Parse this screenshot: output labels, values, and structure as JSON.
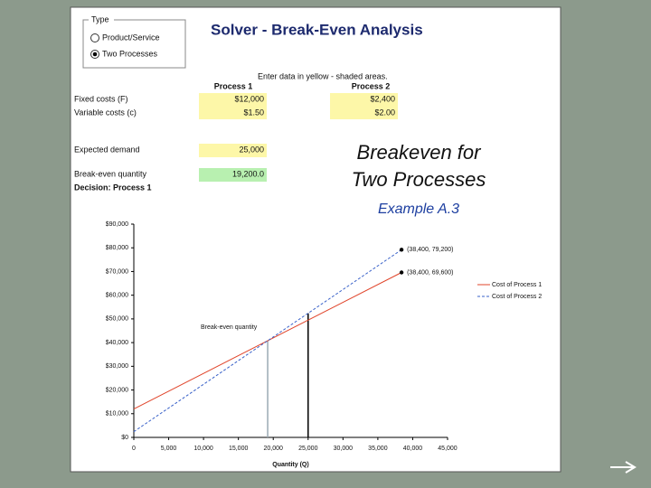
{
  "type_group": {
    "label": "Type",
    "options": [
      "Product/Service",
      "Two Processes"
    ],
    "selected": 1
  },
  "title": "Solver - Break-Even Analysis",
  "instruction": "Enter data in yellow - shaded areas.",
  "columns": [
    "Process 1",
    "Process 2"
  ],
  "rows": [
    {
      "label": "Fixed costs (F)",
      "values": [
        "$12,000",
        "$2,400"
      ]
    },
    {
      "label": "Variable costs (c)",
      "values": [
        "$1.50",
        "$2.00"
      ]
    }
  ],
  "demand": {
    "label": "Expected demand",
    "value": "25,000"
  },
  "breakeven": {
    "label": "Break-even quantity",
    "value": "19,200.0"
  },
  "decision": "Decision: Process 1",
  "slide_title": [
    "Breakeven for",
    "Two Processes"
  ],
  "slide_subtitle": "Example A.3",
  "chart_data": {
    "type": "line",
    "x": [
      0,
      38400
    ],
    "series": [
      {
        "name": "Cost of Process 1",
        "color": "#e0452b",
        "dashed": false,
        "values": [
          12000,
          69600
        ]
      },
      {
        "name": "Cost of Process 2",
        "color": "#3a62c9",
        "dashed": true,
        "values": [
          2400,
          79200
        ]
      }
    ],
    "annotations": [
      {
        "x": 38400,
        "y": 79200,
        "label": "(38,400,  79,200)"
      },
      {
        "x": 38400,
        "y": 69600,
        "label": "(38,400,  69,600)"
      }
    ],
    "vlines": [
      {
        "x": 19200,
        "y": 40800,
        "color": "#9aaab4"
      },
      {
        "x": 25000,
        "y": 52400,
        "color": "#000000"
      }
    ],
    "vline_label": "Break-even quantity",
    "xlabel": "Quantity (Q)",
    "xlim": [
      0,
      45000
    ],
    "xticks": [
      0,
      {
        "value": 5000,
        "label": "5,000"
      },
      {
        "value": 10000,
        "label": "10,000"
      },
      {
        "value": 15000,
        "label": "15,000"
      },
      {
        "value": 20000,
        "label": "20,000"
      },
      {
        "value": 25000,
        "label": "25,000"
      },
      {
        "value": 30000,
        "label": "30,000"
      },
      {
        "value": 35000,
        "label": "35,000"
      },
      {
        "value": 40000,
        "label": "40,000"
      },
      {
        "value": 45000,
        "label": "45,000"
      }
    ],
    "ylim": [
      0,
      90000
    ],
    "yticks": [
      {
        "value": 0,
        "label": "$0"
      },
      {
        "value": 10000,
        "label": "$10,000"
      },
      {
        "value": 20000,
        "label": "$20,000"
      },
      {
        "value": 30000,
        "label": "$30,000"
      },
      {
        "value": 40000,
        "label": "$40,000"
      },
      {
        "value": 50000,
        "label": "$50,000"
      },
      {
        "value": 60000,
        "label": "$60,000"
      },
      {
        "value": 70000,
        "label": "$70,000"
      },
      {
        "value": 80000,
        "label": "$80,000"
      },
      {
        "value": 90000,
        "label": "$90,000"
      }
    ],
    "legend": "right"
  }
}
